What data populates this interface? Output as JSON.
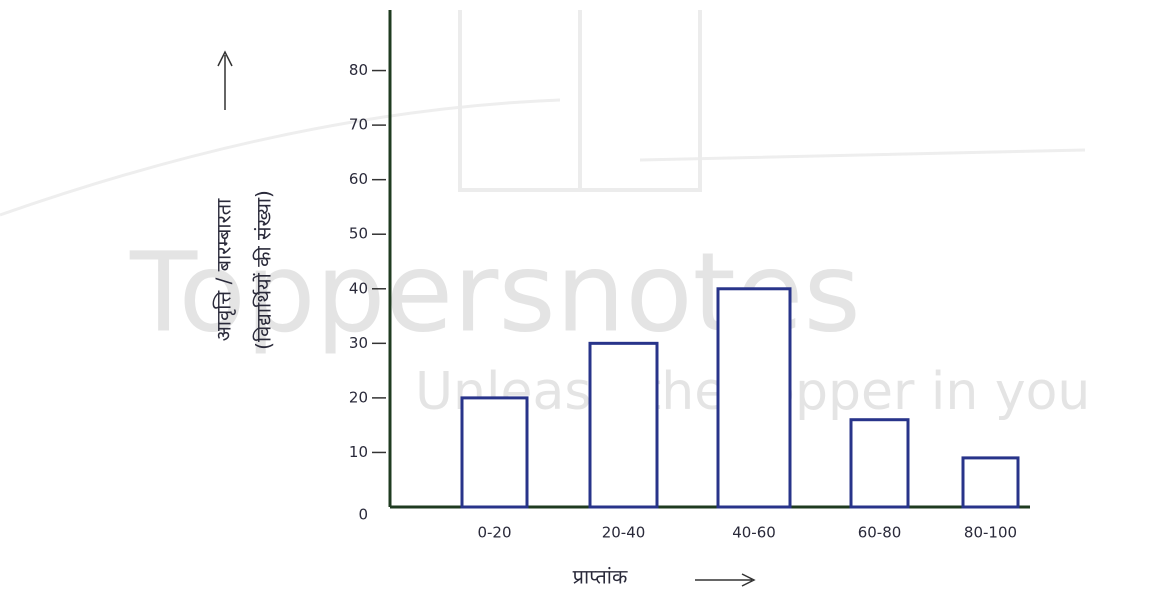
{
  "chart_data": {
    "type": "bar",
    "ylabel": "आवृत्ति / बारम्बारता",
    "ylabel_note": "(विद्यार्थियों की संख्या)",
    "xlabel": "प्राप्तांक",
    "categories": [
      "0-20",
      "20-40",
      "40-60",
      "60-80",
      "80-100"
    ],
    "values": [
      20,
      30,
      40,
      16,
      9
    ],
    "color": "#28348a",
    "axis_color": "#1f3b20",
    "ylim": [
      0,
      90
    ],
    "yticks": [
      0,
      10,
      20,
      30,
      40,
      50,
      60,
      70,
      80
    ],
    "grid": false,
    "watermark": "Toppersnotes",
    "watermark_tagline": "Unleash the topper in you"
  }
}
